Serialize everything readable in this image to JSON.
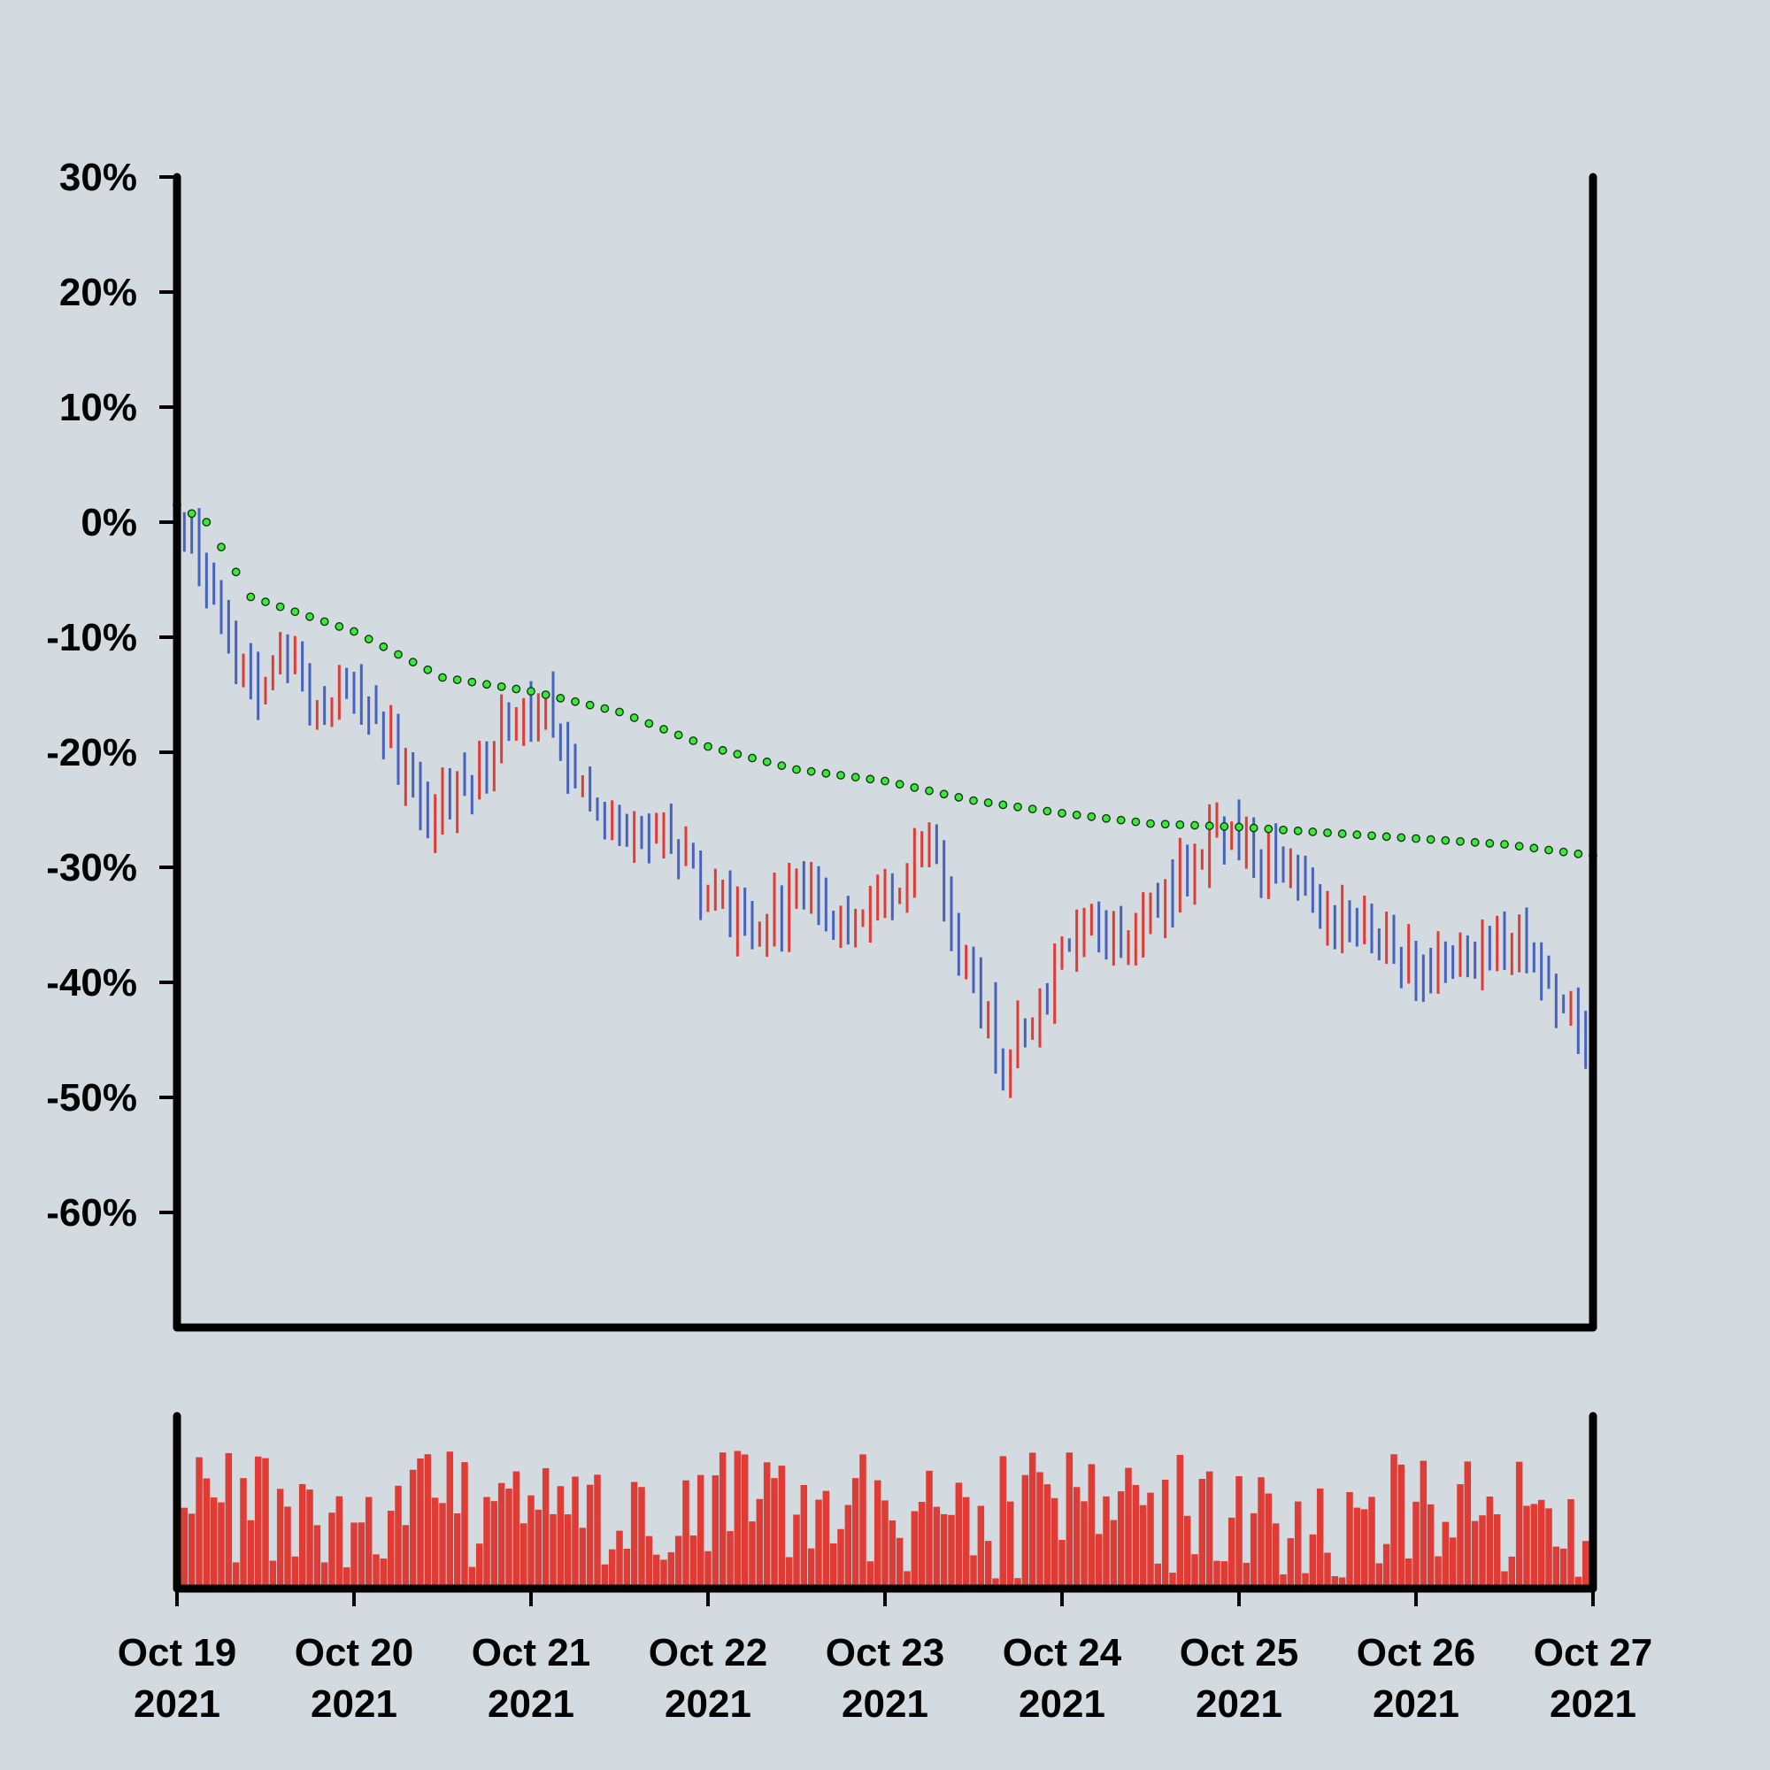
{
  "chart_data": {
    "type": "ohlc",
    "title": "",
    "xlabel": "",
    "ylabel": "",
    "y_format": "percent",
    "ylim": [
      -70,
      30
    ],
    "xlim": [
      "2021-10-19T00:00",
      "2021-10-27T00:00"
    ],
    "y_ticks": [
      {
        "value": 30,
        "label": "30%"
      },
      {
        "value": 20,
        "label": "20%"
      },
      {
        "value": 10,
        "label": "10%"
      },
      {
        "value": 0,
        "label": "0%"
      },
      {
        "value": -10,
        "label": "-10%"
      },
      {
        "value": -20,
        "label": "-20%"
      },
      {
        "value": -30,
        "label": "-30%"
      },
      {
        "value": -40,
        "label": "-40%"
      },
      {
        "value": -50,
        "label": "-50%"
      },
      {
        "value": -60,
        "label": "-60%"
      }
    ],
    "x_ticks": [
      {
        "value": "2021-10-19",
        "line1": "Oct 19",
        "line2": "2021"
      },
      {
        "value": "2021-10-20",
        "line1": "Oct 20",
        "line2": "2021"
      },
      {
        "value": "2021-10-21",
        "line1": "Oct 21",
        "line2": "2021"
      },
      {
        "value": "2021-10-22",
        "line1": "Oct 22",
        "line2": "2021"
      },
      {
        "value": "2021-10-23",
        "line1": "Oct 23",
        "line2": "2021"
      },
      {
        "value": "2021-10-24",
        "line1": "Oct 24",
        "line2": "2021"
      },
      {
        "value": "2021-10-25",
        "line1": "Oct 25",
        "line2": "2021"
      },
      {
        "value": "2021-10-26",
        "line1": "Oct 26",
        "line2": "2021"
      },
      {
        "value": "2021-10-27",
        "line1": "Oct 27",
        "line2": "2021"
      }
    ],
    "bar_interval_hours": 1,
    "price_path": [
      [
        "2021-10-19T00:00",
        1.5
      ],
      [
        "2021-10-19T06:00",
        -9
      ],
      [
        "2021-10-19T10:00",
        -15
      ],
      [
        "2021-10-19T14:00",
        -11
      ],
      [
        "2021-10-19T18:00",
        -16
      ],
      [
        "2021-10-20T00:00",
        -14
      ],
      [
        "2021-10-20T06:00",
        -21
      ],
      [
        "2021-10-20T10:00",
        -25
      ],
      [
        "2021-10-20T16:00",
        -22
      ],
      [
        "2021-10-20T21:00",
        -17
      ],
      [
        "2021-10-21T02:00",
        -16
      ],
      [
        "2021-10-21T06:00",
        -22
      ],
      [
        "2021-10-21T12:00",
        -26
      ],
      [
        "2021-10-21T18:00",
        -28
      ],
      [
        "2021-10-22T00:00",
        -32
      ],
      [
        "2021-10-22T06:00",
        -36
      ],
      [
        "2021-10-22T12:00",
        -32
      ],
      [
        "2021-10-22T18:00",
        -34
      ],
      [
        "2021-10-23T00:00",
        -33
      ],
      [
        "2021-10-23T06:00",
        -28
      ],
      [
        "2021-10-23T10:00",
        -37
      ],
      [
        "2021-10-23T16:00",
        -47
      ],
      [
        "2021-10-23T20:00",
        -43
      ],
      [
        "2021-10-24T02:00",
        -36
      ],
      [
        "2021-10-24T08:00",
        -36
      ],
      [
        "2021-10-24T14:00",
        -33
      ],
      [
        "2021-10-24T20:00",
        -27
      ],
      [
        "2021-10-25T02:00",
        -29
      ],
      [
        "2021-10-25T08:00",
        -32
      ],
      [
        "2021-10-25T14:00",
        -35
      ],
      [
        "2021-10-25T20:00",
        -36
      ],
      [
        "2021-10-26T02:00",
        -39
      ],
      [
        "2021-10-26T08:00",
        -37
      ],
      [
        "2021-10-26T14:00",
        -37
      ],
      [
        "2021-10-26T20:00",
        -42
      ],
      [
        "2021-10-27T00:00",
        -46
      ]
    ],
    "moving_average": [
      [
        "2021-10-19T00:00",
        1.5
      ],
      [
        "2021-10-19T04:00",
        0
      ],
      [
        "2021-10-19T10:00",
        -6.5
      ],
      [
        "2021-10-20T00:00",
        -9.5
      ],
      [
        "2021-10-20T12:00",
        -13.5
      ],
      [
        "2021-10-21T00:00",
        -14.7
      ],
      [
        "2021-10-21T12:00",
        -16.5
      ],
      [
        "2021-10-22T00:00",
        -19.5
      ],
      [
        "2021-10-22T12:00",
        -21.5
      ],
      [
        "2021-10-23T00:00",
        -22.5
      ],
      [
        "2021-10-23T12:00",
        -24.2
      ],
      [
        "2021-10-24T00:00",
        -25.3
      ],
      [
        "2021-10-24T12:00",
        -26.2
      ],
      [
        "2021-10-25T00:00",
        -26.5
      ],
      [
        "2021-10-25T12:00",
        -27
      ],
      [
        "2021-10-26T00:00",
        -27.5
      ],
      [
        "2021-10-26T12:00",
        -28
      ],
      [
        "2021-10-27T00:00",
        -29
      ]
    ],
    "series": [
      {
        "role": "up_bar",
        "color": "#e03c36"
      },
      {
        "role": "down_bar",
        "color": "#4761bf"
      },
      {
        "role": "moving_average",
        "color": "#3ee63e"
      },
      {
        "role": "volume",
        "color": "#e03c36"
      }
    ],
    "volume": {
      "range": [
        0,
        100
      ],
      "typical": [
        0,
        80
      ],
      "grid": false
    },
    "grid": false,
    "legend": "none"
  }
}
